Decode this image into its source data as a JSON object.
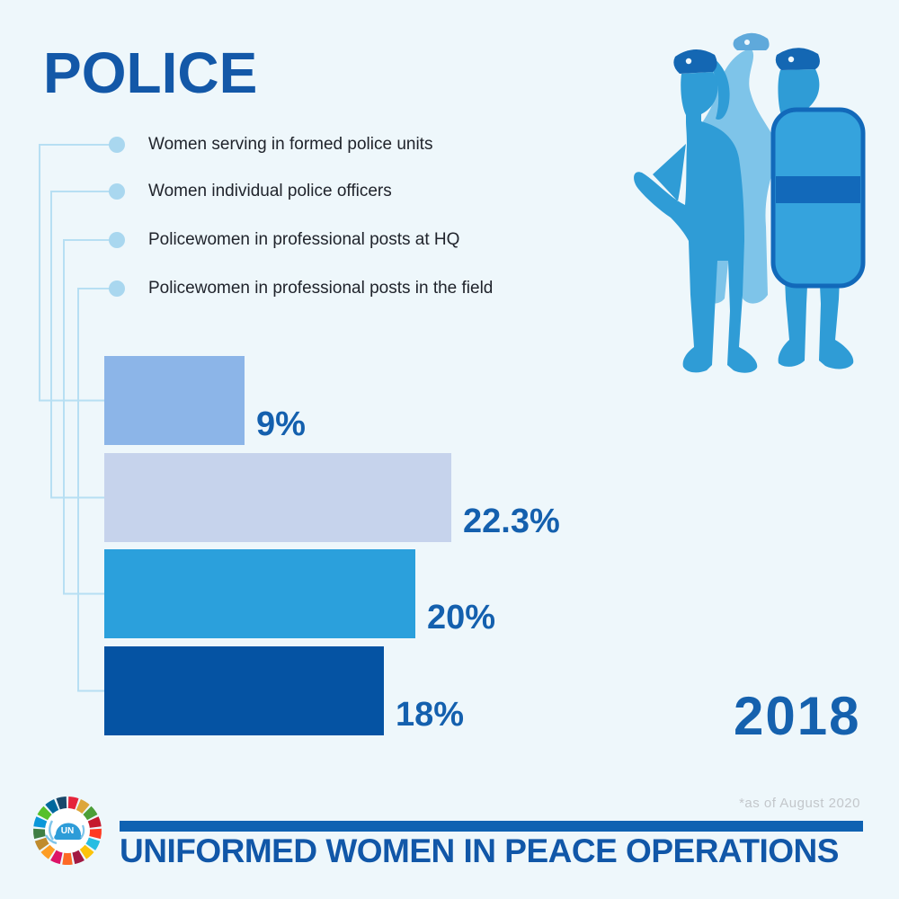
{
  "page": {
    "background_color": "#EEF7FB"
  },
  "header": {
    "title": "POLICE",
    "title_color": "#1358A8"
  },
  "legend": {
    "dot_color": "#A9D7EF",
    "line_color": "#B7DFF3",
    "items": [
      "Women serving in formed police units",
      "Women individual police officers",
      "Policewomen in professional posts at HQ",
      "Policewomen in professional posts in the field"
    ]
  },
  "chart_data": {
    "type": "bar",
    "orientation": "horizontal",
    "title": "POLICE",
    "year": "2018",
    "categories": [
      "Women serving in formed police units",
      "Women individual police officers",
      "Policewomen in professional posts at HQ",
      "Policewomen in professional posts in the field"
    ],
    "values": [
      9,
      22.3,
      20,
      18
    ],
    "labels": [
      "9%",
      "22.3%",
      "20%",
      "18%"
    ],
    "unit": "percent",
    "xlim": [
      0,
      25
    ],
    "axes_visible": false,
    "grid": false,
    "bar_colors": [
      "#8CB5E8",
      "#C6D3EC",
      "#2BA0DC",
      "#0553A3"
    ],
    "label_color": "#1460AE",
    "legend_position": "top-left"
  },
  "year_badge": {
    "text": "2018",
    "color": "#1561AE"
  },
  "footnote": {
    "text": "*as of August 2020",
    "color": "#C3C7CB"
  },
  "footer": {
    "title": "UNIFORMED WOMEN IN PEACE OPERATIONS",
    "title_color": "#1157A8",
    "divider_color": "#0F62B2",
    "logo": {
      "name": "un-sdg-wheel",
      "un_text": "UN",
      "helmet_color": "#2D9CD8",
      "laurel_color": "#7FC5EA",
      "sdg_colors": [
        "#E5243B",
        "#DDA63A",
        "#4C9F38",
        "#C5192D",
        "#FF3A21",
        "#26BDE2",
        "#FCC30B",
        "#A21942",
        "#FD6925",
        "#DD1367",
        "#FD9D24",
        "#BF8B2E",
        "#3F7E44",
        "#0A97D9",
        "#56C02B",
        "#00689D",
        "#19486A"
      ]
    }
  },
  "illustration": {
    "name": "women-police-silhouettes",
    "figures": [
      "policewoman with beret and hand on hip",
      "policewoman wearing headscarf",
      "police officer with riot shield"
    ],
    "colors": {
      "body_blue": "#2F9CD6",
      "light_blue": "#7EC4E9",
      "beret_blue": "#1467B3",
      "shield_fill": "#35A3DD",
      "shield_stroke": "#1269BA"
    }
  }
}
